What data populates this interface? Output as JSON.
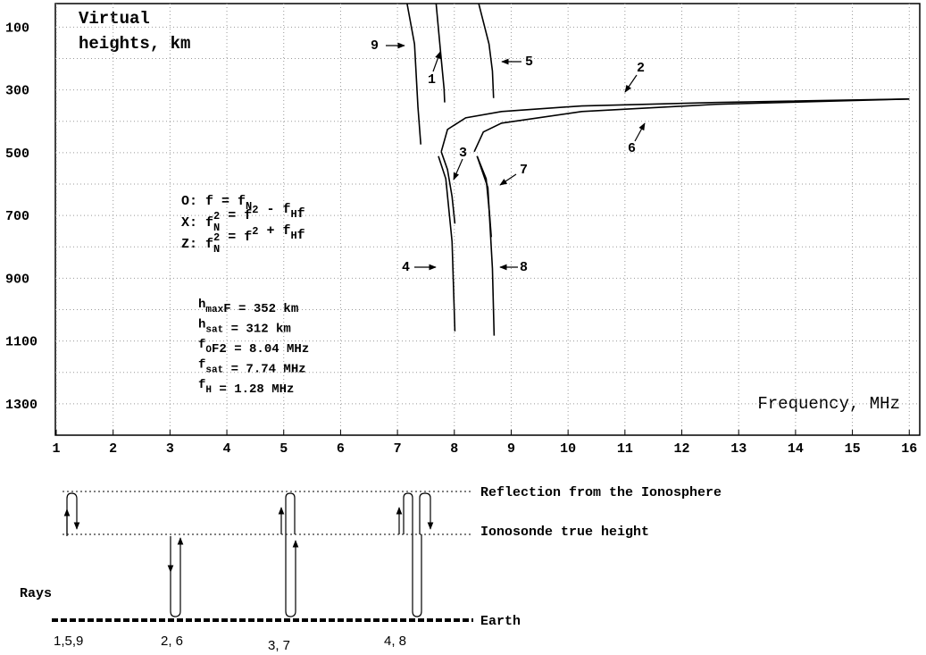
{
  "chart_data": {
    "type": "line",
    "ylabel": [
      "Virtual",
      "heights, km"
    ],
    "xlabel": "Frequency, MHz",
    "xlim": [
      1,
      16.2
    ],
    "xticks": [
      1,
      2,
      3,
      4,
      5,
      6,
      7,
      8,
      9,
      10,
      11,
      12,
      13,
      14,
      15,
      16
    ],
    "ylim": [
      1400,
      25
    ],
    "yticks": [
      100,
      300,
      500,
      700,
      900,
      1100,
      1300
    ],
    "yminor": [
      200,
      400,
      600,
      800,
      1000,
      1200
    ],
    "grid": true,
    "color": "#000000",
    "series": [
      {
        "name": "1",
        "x": [
          7.68,
          7.76,
          7.82,
          7.83
        ],
        "values": [
          26,
          183,
          297,
          340
        ]
      },
      {
        "name": "2",
        "x": [
          7.77,
          7.88,
          8.2,
          8.83,
          10.24,
          12.6,
          16.0
        ],
        "values": [
          497,
          426,
          389,
          369,
          351,
          340,
          329
        ]
      },
      {
        "name": "3",
        "x": [
          7.77,
          7.88,
          7.96,
          8.01
        ],
        "values": [
          497,
          554,
          640,
          726
        ]
      },
      {
        "name": "4",
        "x": [
          7.72,
          7.85,
          7.96,
          8.01
        ],
        "values": [
          511,
          583,
          783,
          1069
        ]
      },
      {
        "name": "5",
        "x": [
          8.43,
          8.61,
          8.67,
          8.69
        ],
        "values": [
          26,
          154,
          240,
          326
        ]
      },
      {
        "name": "6",
        "x": [
          8.35,
          8.51,
          8.83,
          10.24,
          12.6,
          16.0
        ],
        "values": [
          497,
          434,
          406,
          369,
          346,
          329
        ]
      },
      {
        "name": "7",
        "x": [
          8.4,
          8.56,
          8.62,
          8.65
        ],
        "values": [
          511,
          583,
          697,
          769
        ]
      },
      {
        "name": "8",
        "x": [
          8.4,
          8.59,
          8.67,
          8.7
        ],
        "values": [
          511,
          611,
          869,
          1083
        ]
      },
      {
        "name": "9",
        "x": [
          7.17,
          7.3,
          7.36,
          7.41
        ],
        "values": [
          26,
          154,
          354,
          474
        ]
      }
    ],
    "formulas": [
      [
        {
          "text": "O: f = f"
        },
        {
          "sub": "N"
        }
      ],
      [
        {
          "text": "X: f"
        },
        {
          "subsup": [
            "N",
            "2"
          ]
        },
        {
          "text": " = f"
        },
        {
          "sup": "2"
        },
        {
          "text": " - f"
        },
        {
          "sub": "H"
        },
        {
          "text": "f"
        }
      ],
      [
        {
          "text": "Z: f"
        },
        {
          "subsup": [
            "N",
            "2"
          ]
        },
        {
          "text": " = f"
        },
        {
          "sup": "2"
        },
        {
          "text": " + f"
        },
        {
          "sub": "H"
        },
        {
          "text": "f"
        }
      ]
    ],
    "parameters": [
      [
        {
          "text": "h"
        },
        {
          "sub": "max"
        },
        {
          "text": "F = 352 km"
        }
      ],
      [
        {
          "text": "h"
        },
        {
          "sub": "sat"
        },
        {
          "text": " = 312 km"
        }
      ],
      [
        {
          "text": "f"
        },
        {
          "sub": "O"
        },
        {
          "text": "F2 = 8.04 MHz"
        }
      ],
      [
        {
          "text": "f"
        },
        {
          "sub": "sat"
        },
        {
          "text": " = 7.74 MHz"
        }
      ],
      [
        {
          "text": "f"
        },
        {
          "sub": "H"
        },
        {
          "text": " = 1.28 MHz"
        }
      ]
    ]
  },
  "diagram": {
    "reflection": "Reflection from the Ionosphere",
    "true_height": "Ionosonde true height",
    "earth": "Earth",
    "rays_label": "Rays",
    "ray_groups": [
      "1,5,9",
      "2, 6",
      "3, 7",
      "4, 8"
    ]
  }
}
